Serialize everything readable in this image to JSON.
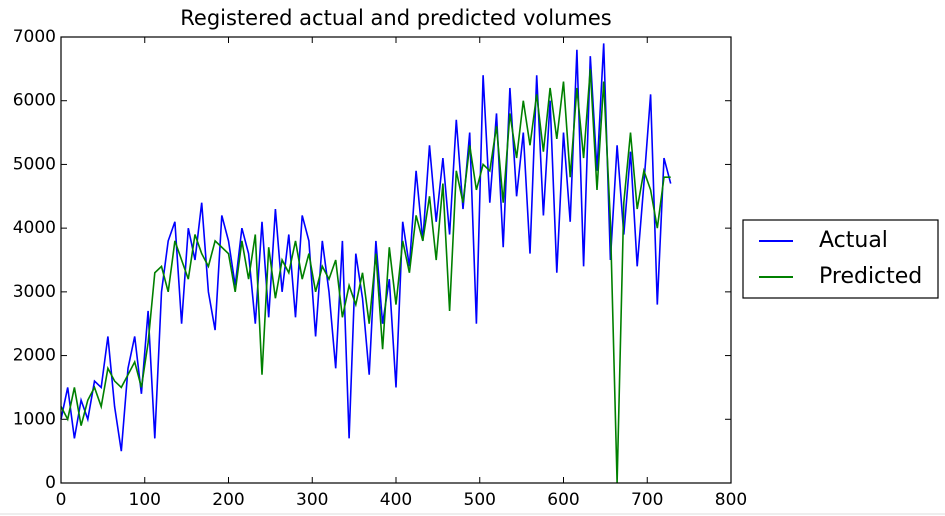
{
  "chart_data": {
    "type": "line",
    "title": "Registered actual and predicted volumes",
    "x": [
      0,
      8,
      16,
      24,
      32,
      40,
      48,
      56,
      64,
      72,
      80,
      88,
      96,
      104,
      112,
      120,
      128,
      136,
      144,
      152,
      160,
      168,
      176,
      184,
      192,
      200,
      208,
      216,
      224,
      232,
      240,
      248,
      256,
      264,
      272,
      280,
      288,
      296,
      304,
      312,
      320,
      328,
      336,
      344,
      352,
      360,
      368,
      376,
      384,
      392,
      400,
      408,
      416,
      424,
      432,
      440,
      448,
      456,
      464,
      472,
      480,
      488,
      496,
      504,
      512,
      520,
      528,
      536,
      544,
      552,
      560,
      568,
      576,
      584,
      592,
      600,
      608,
      616,
      624,
      632,
      640,
      648,
      656,
      664,
      672,
      680,
      688,
      696,
      704,
      712,
      720,
      728
    ],
    "series": [
      {
        "name": "Actual",
        "color": "#0000ff",
        "values": [
          1000,
          1500,
          700,
          1300,
          1000,
          1600,
          1500,
          2300,
          1200,
          500,
          1800,
          2300,
          1400,
          2700,
          700,
          3000,
          3800,
          4100,
          2500,
          4000,
          3500,
          4400,
          3000,
          2400,
          4200,
          3800,
          3100,
          4000,
          3600,
          2500,
          4100,
          2600,
          4300,
          3000,
          3900,
          2600,
          4200,
          3800,
          2300,
          3800,
          3000,
          1800,
          3800,
          700,
          3600,
          2900,
          1700,
          3800,
          2500,
          3200,
          1500,
          4100,
          3400,
          4900,
          3800,
          5300,
          4100,
          5100,
          3900,
          5700,
          4300,
          5500,
          2500,
          6400,
          4400,
          5800,
          3700,
          6200,
          4500,
          5500,
          3600,
          6400,
          4200,
          6000,
          3300,
          5500,
          4100,
          6800,
          3400,
          6700,
          4900,
          6900,
          3500,
          5300,
          3900,
          5200,
          3400,
          4700,
          6100,
          2800,
          5100,
          4700
        ]
      },
      {
        "name": "Predicted",
        "color": "#008000",
        "values": [
          1200,
          1000,
          1500,
          900,
          1300,
          1500,
          1200,
          1800,
          1600,
          1500,
          1700,
          1900,
          1500,
          2200,
          3300,
          3400,
          3000,
          3800,
          3500,
          3200,
          3900,
          3600,
          3400,
          3800,
          3700,
          3600,
          3000,
          3800,
          3200,
          3900,
          1700,
          3700,
          2900,
          3500,
          3300,
          3800,
          3200,
          3600,
          3000,
          3400,
          3200,
          3500,
          2600,
          3100,
          2800,
          3300,
          2500,
          3600,
          2100,
          3700,
          2800,
          3800,
          3300,
          4200,
          3800,
          4500,
          3500,
          4700,
          2700,
          4900,
          4400,
          5300,
          4600,
          5000,
          4900,
          5600,
          4400,
          5800,
          5100,
          6000,
          5300,
          6100,
          5200,
          6200,
          5400,
          6300,
          4800,
          6200,
          5100,
          6500,
          4600,
          6300,
          4100,
          0,
          4400,
          5500,
          4300,
          4900,
          4600,
          4000,
          4800,
          4800
        ]
      }
    ],
    "xlim": [
      0,
      800
    ],
    "xticks": [
      0,
      100,
      200,
      300,
      400,
      500,
      600,
      700,
      800
    ],
    "ylim": [
      0,
      7000
    ],
    "yticks": [
      0,
      1000,
      2000,
      3000,
      4000,
      5000,
      6000,
      7000
    ],
    "legend": "right"
  }
}
